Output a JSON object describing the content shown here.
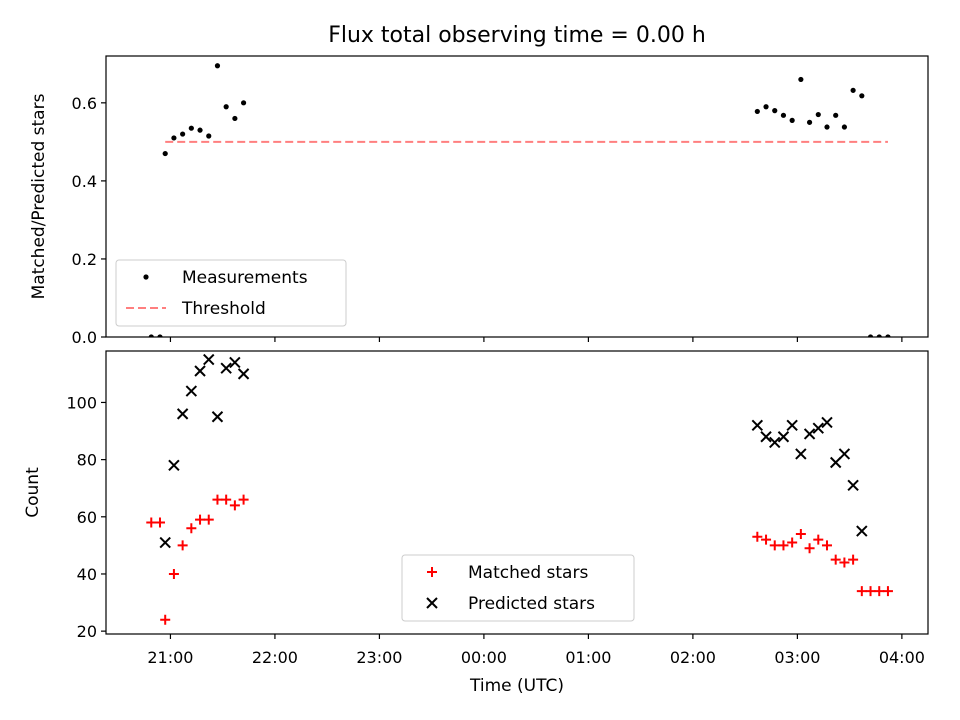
{
  "title": "Flux total observing time = 0.00 h",
  "xlabel": "Time (UTC)",
  "x_ticks": [
    "21:00",
    "22:00",
    "23:00",
    "00:00",
    "01:00",
    "02:00",
    "03:00",
    "04:00"
  ],
  "chart_data": [
    {
      "type": "scatter",
      "ylabel": "Matched/Predicted stars",
      "ylim": [
        0,
        0.72
      ],
      "y_ticks": [
        "0.0",
        "0.2",
        "0.4",
        "0.6"
      ],
      "legend_position": "lower-left",
      "series": [
        {
          "name": "Measurements",
          "marker": "dot",
          "color": "#000000",
          "x": [
            "20:49",
            "20:54",
            "20:57",
            "21:02",
            "21:07",
            "21:12",
            "21:17",
            "21:22",
            "21:27",
            "21:32",
            "21:37",
            "21:42",
            "21:47",
            "02:37",
            "02:42",
            "02:47",
            "02:52",
            "02:57",
            "03:02",
            "03:07",
            "03:12",
            "03:17",
            "03:22",
            "03:27",
            "03:32",
            "03:37",
            "03:42",
            "03:47",
            "03:52"
          ],
          "values": [
            0.0,
            0.0,
            0.47,
            0.51,
            0.52,
            0.535,
            0.53,
            0.515,
            0.695,
            0.59,
            0.56,
            0.6,
            null,
            0.578,
            0.59,
            0.58,
            0.568,
            0.555,
            0.66,
            0.55,
            0.57,
            0.538,
            0.568,
            0.538,
            0.632,
            0.618,
            0.0,
            0.0,
            0.0
          ]
        },
        {
          "name": "Threshold",
          "style": "dashed-line",
          "color": "#ff7f7f",
          "x": [
            "20:57",
            "03:52"
          ],
          "values": [
            0.5,
            0.5
          ]
        }
      ]
    },
    {
      "type": "scatter",
      "ylabel": "Count",
      "ylim": [
        19,
        118
      ],
      "y_ticks": [
        "20",
        "40",
        "60",
        "80",
        "100"
      ],
      "legend_position": "lower-center",
      "series": [
        {
          "name": "Matched stars",
          "marker": "plus",
          "color": "#ff0000",
          "x": [
            "20:49",
            "20:54",
            "20:57",
            "21:02",
            "21:07",
            "21:12",
            "21:17",
            "21:22",
            "21:27",
            "21:32",
            "21:37",
            "21:42",
            "02:37",
            "02:42",
            "02:47",
            "02:52",
            "02:57",
            "03:02",
            "03:07",
            "03:12",
            "03:17",
            "03:22",
            "03:27",
            "03:32",
            "03:37",
            "03:42",
            "03:47",
            "03:52"
          ],
          "values": [
            58,
            58,
            24,
            40,
            50,
            56,
            59,
            59,
            66,
            66,
            64,
            66,
            53,
            52,
            50,
            50,
            51,
            54,
            49,
            52,
            50,
            45,
            44,
            45,
            34,
            34,
            34,
            34
          ]
        },
        {
          "name": "Predicted stars",
          "marker": "x",
          "color": "#000000",
          "x": [
            "20:57",
            "21:02",
            "21:07",
            "21:12",
            "21:17",
            "21:22",
            "21:27",
            "21:32",
            "21:37",
            "21:42",
            "02:37",
            "02:42",
            "02:47",
            "02:52",
            "02:57",
            "03:02",
            "03:07",
            "03:12",
            "03:17",
            "03:22",
            "03:27",
            "03:32",
            "03:37"
          ],
          "values": [
            51,
            78,
            96,
            104,
            111,
            115,
            95,
            112,
            114,
            110,
            92,
            88,
            86,
            88,
            92,
            82,
            89,
            91,
            93,
            79,
            82,
            71,
            55
          ]
        }
      ]
    }
  ]
}
